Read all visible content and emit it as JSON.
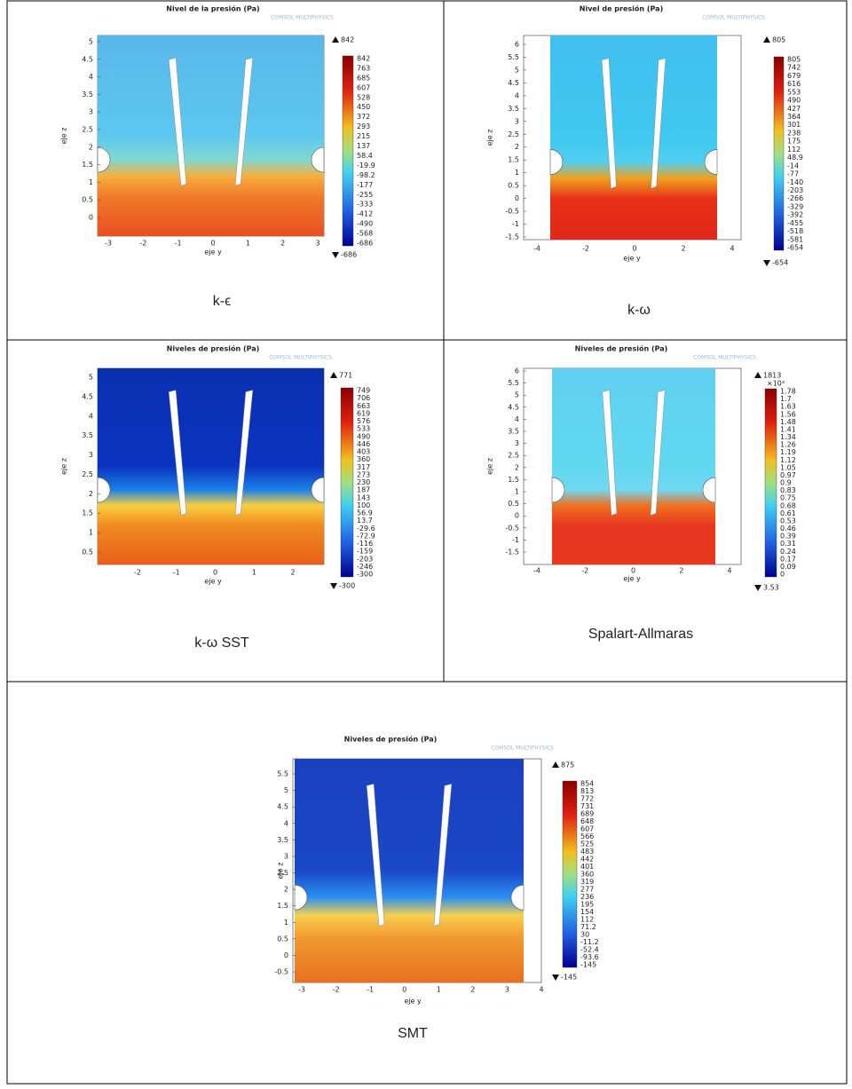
{
  "panels": [
    {
      "title": "Nivel de la presión (Pa)",
      "watermark": "COMSOL MULTIPHYSICS",
      "ylabel": "eje z",
      "xlabel": "eje y",
      "yticks": [
        5,
        4.5,
        4,
        3.5,
        3,
        2.5,
        2,
        1.5,
        1,
        0.5,
        0
      ],
      "xticks": [
        -3,
        -2,
        -1,
        0,
        1,
        2,
        3
      ],
      "max": 842,
      "min": -686,
      "colorbar": [
        842,
        763,
        685,
        607,
        528,
        450,
        372,
        293,
        215,
        137,
        58.4,
        -19.9,
        -98.2,
        -177,
        -255,
        -333,
        -412,
        -490,
        -568,
        -686
      ],
      "caption": "k-ϵ"
    },
    {
      "title": "Nivel de presión (Pa)",
      "watermark": "COMSOL MULTIPHYSICS",
      "ylabel": "eje z",
      "xlabel": "eje y",
      "yticks": [
        6,
        5.5,
        5,
        4.5,
        4,
        3.5,
        3,
        2.5,
        2,
        1.5,
        1,
        0.5,
        0,
        -0.5,
        -1,
        -1.5
      ],
      "xticks": [
        -4,
        -2,
        0,
        2,
        4
      ],
      "max": 805,
      "min": -654,
      "colorbar": [
        805,
        742,
        679,
        616,
        553,
        490,
        427,
        364,
        301,
        238,
        175,
        112,
        48.9,
        -14,
        -77,
        -140,
        -203,
        -266,
        -329,
        -392,
        -455,
        -518,
        -581,
        -654
      ],
      "caption": "k-ω"
    },
    {
      "title": "Niveles de presión (Pa)",
      "watermark": "COMSOL MULTIPHYSICS",
      "ylabel": "eje z",
      "xlabel": "eje y",
      "yticks": [
        5,
        4.5,
        4,
        3.5,
        3,
        2.5,
        2,
        1.5,
        1,
        0.5
      ],
      "xticks": [
        -2,
        -1,
        0,
        1,
        2
      ],
      "max": 771,
      "min": -300,
      "colorbar": [
        749,
        706,
        663,
        619,
        576,
        533,
        490,
        446,
        403,
        360,
        317,
        273,
        230,
        187,
        143,
        100,
        56.9,
        13.7,
        -29.6,
        -72.9,
        -116,
        -159,
        -203,
        -246,
        -300
      ],
      "caption": "k-ω SST"
    },
    {
      "title": "Niveles de presión (Pa)",
      "watermark": "COMSOL MULTIPHYSICS",
      "ylabel": "eje z",
      "xlabel": "eje y",
      "yticks": [
        6,
        5.5,
        5,
        4.5,
        4,
        3.5,
        3,
        2.5,
        2,
        1.5,
        1,
        0.5,
        0,
        -0.5,
        -1,
        -1.5
      ],
      "xticks": [
        -4,
        -2,
        0,
        2,
        4
      ],
      "max": 1813,
      "multiplier": "×10³",
      "min": 3.53,
      "colorbar": [
        1.78,
        1.7,
        1.63,
        1.56,
        1.48,
        1.41,
        1.34,
        1.26,
        1.19,
        1.12,
        1.05,
        0.97,
        0.9,
        0.83,
        0.75,
        0.68,
        0.61,
        0.53,
        0.46,
        0.39,
        0.31,
        0.24,
        0.17,
        0.09,
        0
      ],
      "caption": "Spalart-Allmaras"
    },
    {
      "title": "Niveles de presión (Pa)",
      "watermark": "COMSOL MULTIPHYSICS",
      "ylabel": "eje z",
      "xlabel": "eje y",
      "yticks": [
        5.5,
        5,
        4.5,
        4,
        3.5,
        3,
        2.5,
        2,
        1.5,
        1,
        0.5,
        0,
        -0.5
      ],
      "xticks": [
        -3,
        -2,
        -1,
        0,
        1,
        2,
        3,
        4
      ],
      "max": 875,
      "min": -145,
      "colorbar": [
        854,
        813,
        772,
        731,
        689,
        648,
        607,
        566,
        525,
        483,
        442,
        401,
        360,
        319,
        277,
        236,
        195,
        154,
        112,
        71.2,
        30,
        -11.2,
        -52.4,
        -93.6,
        -145
      ],
      "caption": "SMT"
    }
  ]
}
